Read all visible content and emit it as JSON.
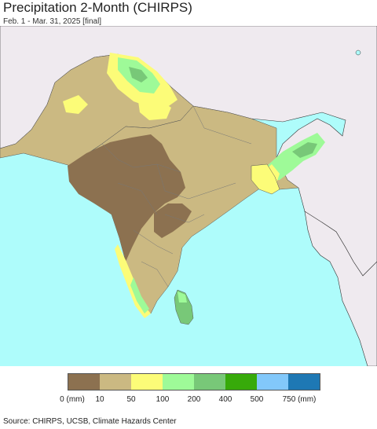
{
  "header": {
    "title": "Precipitation 2-Month (CHIRPS)",
    "subtitle": "Feb. 1 - Mar. 31, 2025 [final]"
  },
  "map": {
    "ocean_color": "#aefcfb",
    "outside_land_color": "#efeaef",
    "border_color": "#333333"
  },
  "legend": {
    "colors": [
      "#8c7150",
      "#cbb982",
      "#fcfc78",
      "#9efa98",
      "#78c878",
      "#37aa0a",
      "#82c8fa",
      "#1e78b4"
    ],
    "tick_labels": [
      "0 (mm)",
      "10",
      "50",
      "100",
      "200",
      "400",
      "500",
      "750 (mm)"
    ]
  },
  "footer": {
    "source": "Source: CHIRPS, UCSB, Climate Hazards Center"
  }
}
